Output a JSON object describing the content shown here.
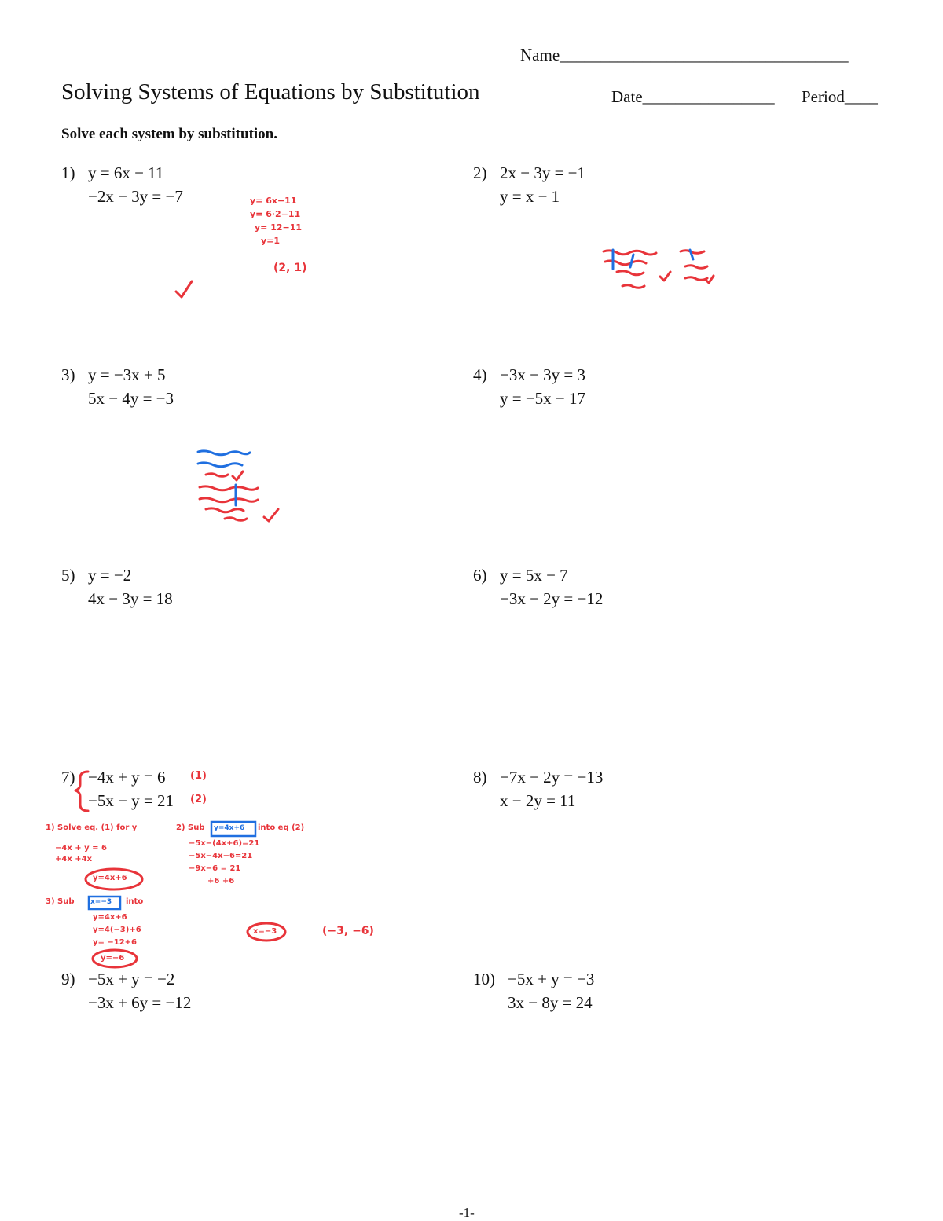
{
  "header": {
    "name_label": "Name___________________________________",
    "title": "Solving Systems of Equations by Substitution",
    "date_label": "Date________________",
    "period_label": "Period____"
  },
  "instructions": "Solve each system by substitution.",
  "problems": [
    {
      "number": "1)",
      "eq1": "y = 6x − 11",
      "eq2": "−2x − 3y = −7"
    },
    {
      "number": "2)",
      "eq1": "2x − 3y = −1",
      "eq2": "y = x − 1"
    },
    {
      "number": "3)",
      "eq1": "y = −3x + 5",
      "eq2": "5x − 4y = −3"
    },
    {
      "number": "4)",
      "eq1": "−3x − 3y = 3",
      "eq2": "y = −5x − 17"
    },
    {
      "number": "5)",
      "eq1": "y = −2",
      "eq2": "4x − 3y = 18"
    },
    {
      "number": "6)",
      "eq1": "y = 5x − 7",
      "eq2": "−3x − 2y = −12"
    },
    {
      "number": "7)",
      "eq1": "−4x + y = 6",
      "eq2": "−5x − y = 21"
    },
    {
      "number": "8)",
      "eq1": "−7x − 2y = −13",
      "eq2": "x − 2y = 11"
    },
    {
      "number": "9)",
      "eq1": "−5x + y = −2",
      "eq2": "−3x + 6y = −12"
    },
    {
      "number": "10)",
      "eq1": "−5x + y = −3",
      "eq2": "3x − 8y = 24"
    }
  ],
  "handwriting": {
    "p1_work": [
      "y= 6x−11",
      "y= 6·2−11",
      "y= 12−11",
      "y=1"
    ],
    "p1_answer": "(2, 1)",
    "p7_eq_tags": [
      "(1)",
      "(2)"
    ],
    "p7_step1": "1) Solve eq. (1) for y",
    "p7_step1_work": [
      "−4x + y = 6",
      "+4x      +4x"
    ],
    "p7_step1_result": "y=4x+6",
    "p7_step2": "2) Sub",
    "p7_step2_box": "y=4x+6",
    "p7_step2_into": "into eq (2)",
    "p7_step2_work": [
      "−5x−(4x+6)=21",
      "−5x−4x−6=21",
      "−9x−6 = 21",
      "+6   +6"
    ],
    "p7_x_result": "x=−3",
    "p7_step3": "3) Sub",
    "p7_step3_box": "x=−3",
    "p7_step3_into": "into",
    "p7_step3_work": [
      "y=4x+6",
      "y=4(−3)+6",
      "y= −12+6"
    ],
    "p7_y_result": "y=−6",
    "p7_answer": "(−3, −6)",
    "colors": {
      "red": "#e8343a",
      "blue": "#1f6fe0"
    }
  },
  "footer": {
    "page": "-1-"
  }
}
